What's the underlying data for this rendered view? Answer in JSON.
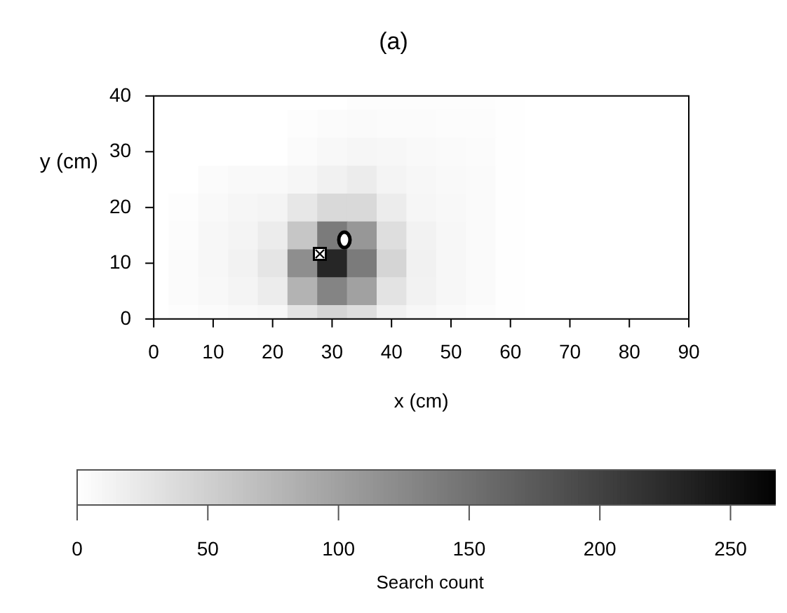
{
  "chart_data": {
    "type": "heatmap",
    "title": "(a)",
    "xlabel": "x (cm)",
    "ylabel": "y (cm)",
    "clabel": "Search count",
    "categories": [
      "0",
      null,
      "10",
      null,
      "20",
      null,
      "30",
      null,
      "40",
      null,
      "50",
      null,
      "60",
      null,
      "70",
      null,
      "80",
      null,
      "90"
    ],
    "y_categories": [
      "40",
      null,
      "30",
      null,
      "20",
      null,
      "10",
      null,
      "0"
    ],
    "cells": [
      [
        0,
        0,
        0,
        0,
        0,
        0,
        0,
        2,
        2,
        2,
        2,
        2,
        1,
        0,
        0,
        0,
        0,
        0,
        0
      ],
      [
        0,
        0,
        0,
        0,
        0,
        2,
        4,
        5,
        4,
        4,
        3,
        3,
        1,
        0,
        0,
        0,
        0,
        0,
        0
      ],
      [
        0,
        0,
        0,
        0,
        0,
        4,
        7,
        10,
        8,
        6,
        5,
        4,
        1,
        0,
        0,
        0,
        0,
        0,
        0
      ],
      [
        0,
        0,
        4,
        6,
        6,
        10,
        15,
        20,
        12,
        8,
        6,
        5,
        1,
        0,
        0,
        0,
        0,
        0,
        0
      ],
      [
        0,
        2,
        6,
        10,
        12,
        25,
        40,
        40,
        20,
        10,
        7,
        5,
        1,
        0,
        0,
        0,
        0,
        0,
        0
      ],
      [
        0,
        3,
        8,
        12,
        20,
        60,
        140,
        110,
        35,
        14,
        8,
        5,
        1,
        0,
        0,
        0,
        0,
        0,
        0
      ],
      [
        0,
        4,
        8,
        14,
        28,
        120,
        230,
        140,
        45,
        15,
        8,
        5,
        1,
        0,
        0,
        0,
        0,
        0,
        0
      ],
      [
        0,
        4,
        7,
        12,
        20,
        80,
        130,
        100,
        30,
        14,
        8,
        5,
        1,
        0,
        0,
        0,
        0,
        0,
        0
      ],
      [
        0,
        2,
        4,
        6,
        8,
        30,
        45,
        35,
        15,
        8,
        5,
        3,
        1,
        0,
        0,
        0,
        0,
        0,
        0
      ]
    ],
    "clim": [
      0,
      270
    ],
    "cticks": [
      0,
      50,
      100,
      150,
      200,
      250
    ],
    "legend": false
  }
}
